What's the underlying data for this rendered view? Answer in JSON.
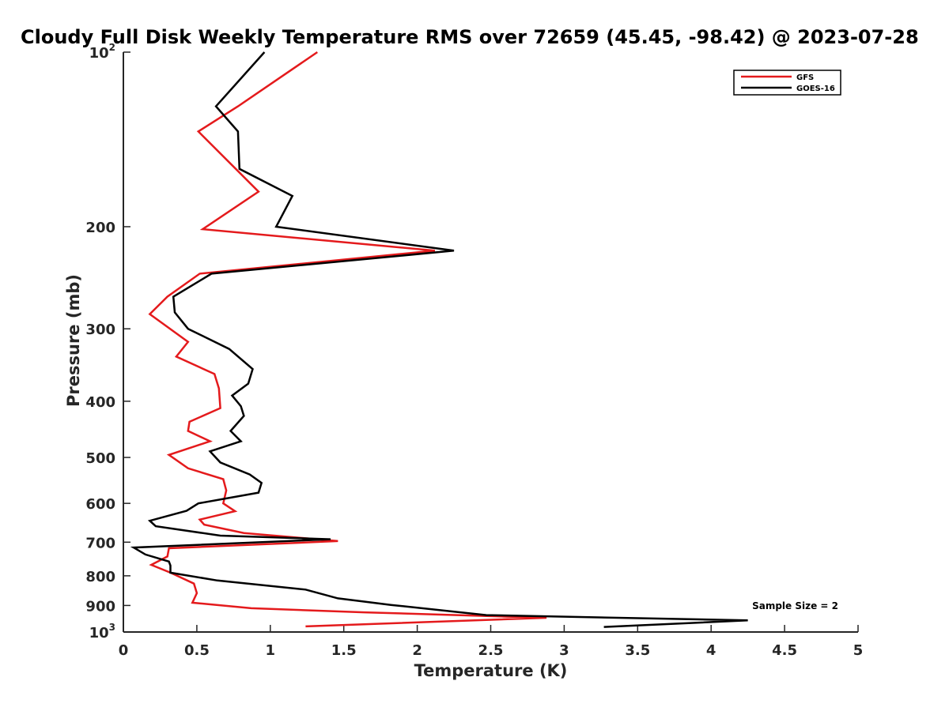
{
  "chart_data": {
    "type": "line",
    "title": "Cloudy Full Disk Weekly Temperature RMS over 72659 (45.45, -98.42) @ 2023-07-28",
    "xlabel": "Temperature (K)",
    "ylabel": "Pressure (mb)",
    "xlim": [
      0,
      5
    ],
    "ylim": [
      100,
      1000
    ],
    "y_scale": "log",
    "y_reversed": true,
    "x_ticks": [
      "0",
      "0.5",
      "1",
      "1.5",
      "2",
      "2.5",
      "3",
      "3.5",
      "4",
      "4.5",
      "5"
    ],
    "y_ticks": [
      {
        "value": 100,
        "base": "10",
        "exp": "2"
      },
      {
        "value": 200,
        "label": "200"
      },
      {
        "value": 300,
        "label": "300"
      },
      {
        "value": 400,
        "label": "400"
      },
      {
        "value": 500,
        "label": "500"
      },
      {
        "value": 600,
        "label": "600"
      },
      {
        "value": 700,
        "label": "700"
      },
      {
        "value": 800,
        "label": "800"
      },
      {
        "value": 900,
        "label": "900"
      },
      {
        "value": 1000,
        "base": "10",
        "exp": "3"
      }
    ],
    "legend_position": "top-right",
    "annotation": "Sample Size = 2",
    "series": [
      {
        "name": "GFS",
        "color": "#e41a1c",
        "points": [
          [
            1.32,
            100
          ],
          [
            0.78,
            124
          ],
          [
            0.51,
            137
          ],
          [
            0.92,
            174
          ],
          [
            0.54,
            202
          ],
          [
            2.12,
            220
          ],
          [
            0.52,
            241
          ],
          [
            0.3,
            264
          ],
          [
            0.18,
            283
          ],
          [
            0.44,
            316
          ],
          [
            0.36,
            335
          ],
          [
            0.62,
            359
          ],
          [
            0.65,
            380
          ],
          [
            0.66,
            411
          ],
          [
            0.45,
            434
          ],
          [
            0.44,
            450
          ],
          [
            0.59,
            469
          ],
          [
            0.31,
            495
          ],
          [
            0.44,
            522
          ],
          [
            0.68,
            545
          ],
          [
            0.7,
            570
          ],
          [
            0.68,
            600
          ],
          [
            0.76,
            619
          ],
          [
            0.52,
            640
          ],
          [
            0.55,
            653
          ],
          [
            0.82,
            675
          ],
          [
            1.46,
            697
          ],
          [
            0.31,
            717
          ],
          [
            0.3,
            741
          ],
          [
            0.19,
            766
          ],
          [
            0.32,
            790
          ],
          [
            0.48,
            825
          ],
          [
            0.5,
            857
          ],
          [
            0.47,
            890
          ],
          [
            0.87,
            910
          ],
          [
            1.64,
            925
          ],
          [
            2.88,
            945
          ],
          [
            1.24,
            978
          ]
        ]
      },
      {
        "name": "GOES-16",
        "color": "#000000",
        "points": [
          [
            0.96,
            100
          ],
          [
            0.63,
            124
          ],
          [
            0.78,
            137
          ],
          [
            0.79,
            159
          ],
          [
            1.15,
            177
          ],
          [
            1.04,
            200
          ],
          [
            2.25,
            220
          ],
          [
            0.6,
            241
          ],
          [
            0.34,
            264
          ],
          [
            0.35,
            281
          ],
          [
            0.44,
            300
          ],
          [
            0.72,
            325
          ],
          [
            0.88,
            352
          ],
          [
            0.85,
            373
          ],
          [
            0.74,
            391
          ],
          [
            0.8,
            408
          ],
          [
            0.82,
            424
          ],
          [
            0.73,
            450
          ],
          [
            0.8,
            469
          ],
          [
            0.59,
            488
          ],
          [
            0.66,
            510
          ],
          [
            0.86,
            535
          ],
          [
            0.94,
            553
          ],
          [
            0.92,
            575
          ],
          [
            0.51,
            600
          ],
          [
            0.43,
            618
          ],
          [
            0.18,
            643
          ],
          [
            0.22,
            657
          ],
          [
            0.66,
            682
          ],
          [
            1.41,
            692
          ],
          [
            0.07,
            715
          ],
          [
            0.15,
            735
          ],
          [
            0.31,
            756
          ],
          [
            0.32,
            768
          ],
          [
            0.32,
            790
          ],
          [
            0.64,
            815
          ],
          [
            1.24,
            845
          ],
          [
            1.46,
            875
          ],
          [
            1.82,
            898
          ],
          [
            2.47,
            935
          ],
          [
            4.25,
            955
          ],
          [
            3.27,
            980
          ]
        ]
      }
    ]
  }
}
